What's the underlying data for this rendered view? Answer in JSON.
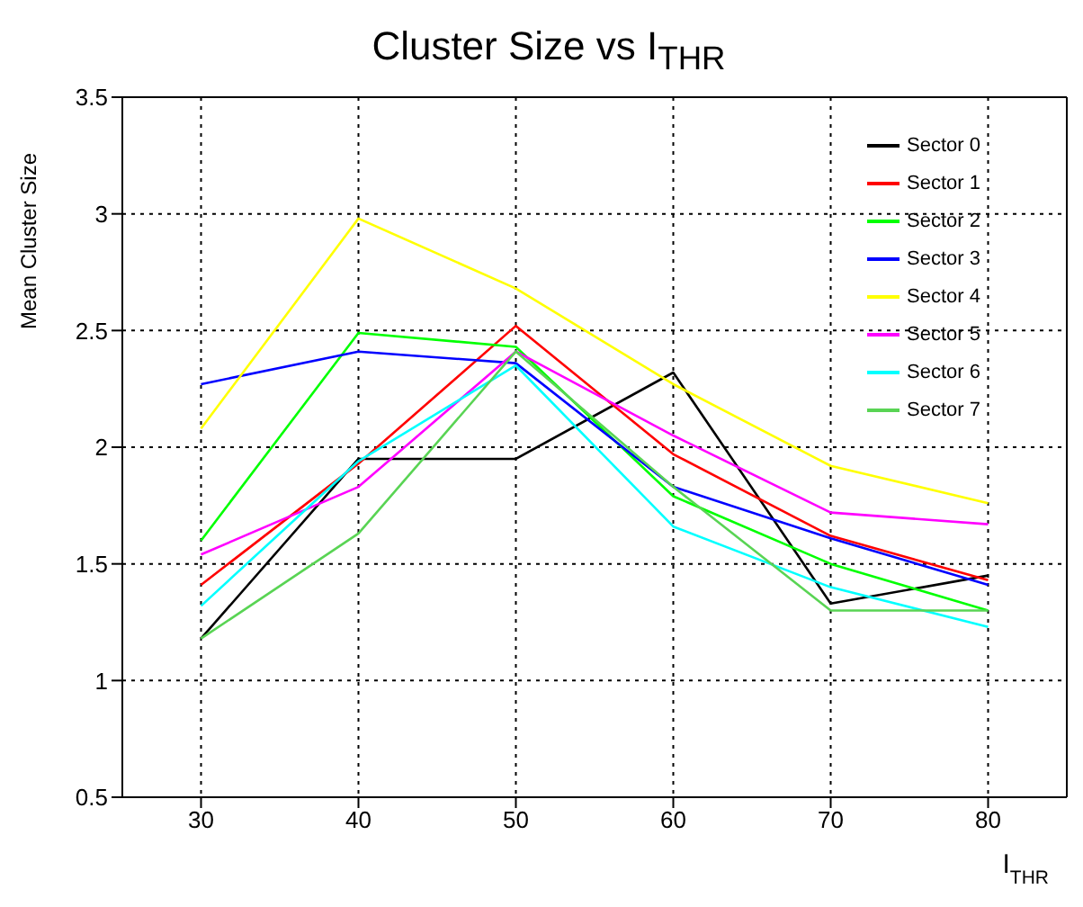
{
  "chart_data": {
    "type": "line",
    "title": "Cluster Size vs I$_{THR}$",
    "xlabel": "I$_{THR}$",
    "ylabel": "Mean Cluster Size",
    "x": [
      30,
      40,
      50,
      60,
      70,
      80
    ],
    "xlim": [
      25,
      85
    ],
    "xticks": [
      30,
      40,
      50,
      60,
      70,
      80
    ],
    "ylim": [
      0.5,
      3.5
    ],
    "yticks": [
      0.5,
      1,
      1.5,
      2,
      2.5,
      3,
      3.5
    ],
    "grid": true,
    "legend": "top right",
    "marker": "none",
    "line_style": "solid",
    "series": [
      {
        "name": "Sector 0",
        "color": "#000000",
        "values": [
          1.18,
          1.95,
          1.95,
          2.32,
          1.33,
          1.45
        ]
      },
      {
        "name": "Sector 1",
        "color": "#ff0000",
        "values": [
          1.41,
          1.93,
          2.52,
          1.97,
          1.62,
          1.43
        ]
      },
      {
        "name": "Sector 2",
        "color": "#00ff00",
        "values": [
          1.6,
          2.49,
          2.43,
          1.79,
          1.5,
          1.3
        ]
      },
      {
        "name": "Sector 3",
        "color": "#0000ff",
        "values": [
          2.27,
          2.41,
          2.36,
          1.83,
          1.61,
          1.41
        ]
      },
      {
        "name": "Sector 4",
        "color": "#ffff00",
        "values": [
          2.08,
          2.98,
          2.68,
          2.27,
          1.92,
          1.76
        ]
      },
      {
        "name": "Sector 5",
        "color": "#ff00ff",
        "values": [
          1.54,
          1.83,
          2.41,
          2.05,
          1.72,
          1.67
        ]
      },
      {
        "name": "Sector 6",
        "color": "#00ffff",
        "values": [
          1.32,
          1.94,
          2.35,
          1.66,
          1.4,
          1.23
        ]
      },
      {
        "name": "Sector 7",
        "color": "#59d454",
        "values": [
          1.18,
          1.63,
          2.41,
          1.83,
          1.3,
          1.3
        ]
      }
    ]
  }
}
